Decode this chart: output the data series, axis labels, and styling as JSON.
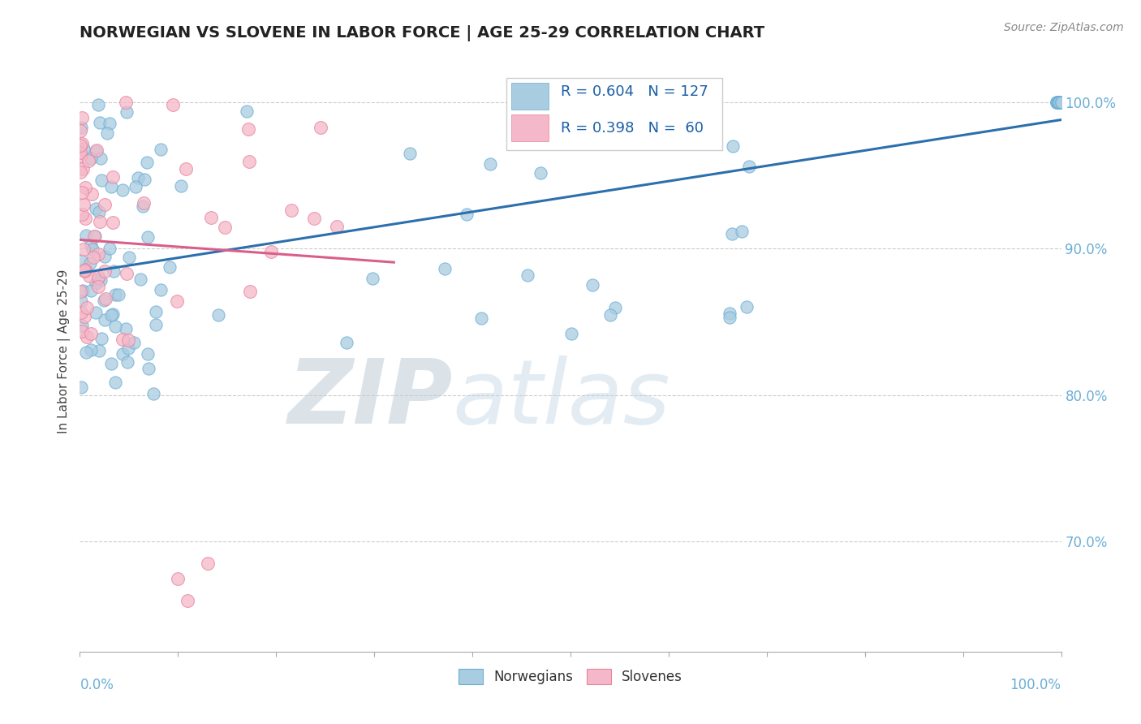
{
  "title": "NORWEGIAN VS SLOVENE IN LABOR FORCE | AGE 25-29 CORRELATION CHART",
  "source_text": "Source: ZipAtlas.com",
  "ylabel": "In Labor Force | Age 25-29",
  "right_yticks": [
    "100.0%",
    "90.0%",
    "80.0%",
    "70.0%"
  ],
  "right_ytick_vals": [
    1.0,
    0.9,
    0.8,
    0.7
  ],
  "norwegian_R": 0.604,
  "norwegian_N": 127,
  "slovene_R": 0.398,
  "slovene_N": 60,
  "blue_color": "#a8cce0",
  "blue_edge_color": "#6baed6",
  "pink_color": "#f4b8c8",
  "pink_edge_color": "#e8849e",
  "blue_line_color": "#2c6fad",
  "pink_line_color": "#d95f8a",
  "title_color": "#222222",
  "axis_color": "#6baed6",
  "watermark_color": "#d0dfe8",
  "watermark_text": "ZIPatlas",
  "background_color": "#ffffff",
  "xlim": [
    0.0,
    1.0
  ],
  "ylim": [
    0.625,
    1.035
  ],
  "grid_color": "#cccccc",
  "legend_text_color": "#1a5fa8"
}
